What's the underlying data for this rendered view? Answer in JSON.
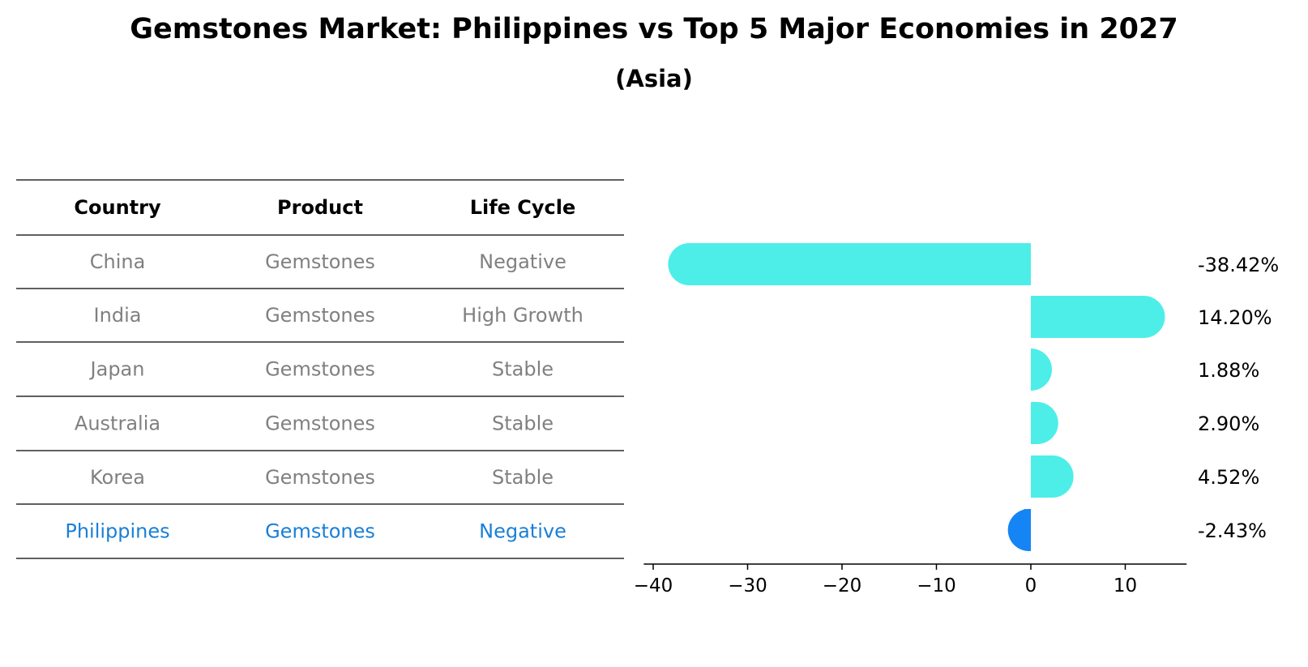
{
  "title": "Gemstones Market: Philippines vs Top 5 Major Economies in 2027",
  "subtitle": "(Asia)",
  "table": {
    "headers": [
      "Country",
      "Product",
      "Life Cycle"
    ],
    "rows": [
      {
        "country": "China",
        "product": "Gemstones",
        "life_cycle": "Negative",
        "highlight": false
      },
      {
        "country": "India",
        "product": "Gemstones",
        "life_cycle": "High Growth",
        "highlight": false
      },
      {
        "country": "Japan",
        "product": "Gemstones",
        "life_cycle": "Stable",
        "highlight": false
      },
      {
        "country": "Australia",
        "product": "Gemstones",
        "life_cycle": "Stable",
        "highlight": false
      },
      {
        "country": "Korea",
        "product": "Gemstones",
        "life_cycle": "Stable",
        "highlight": false
      },
      {
        "country": "Philippines",
        "product": "Gemstones",
        "life_cycle": "Negative",
        "highlight": true
      }
    ]
  },
  "colors": {
    "bar": "#4deee8",
    "highlight_bar": "#1585f5",
    "highlight_text": "#1a7fd6",
    "muted_text": "#808080"
  },
  "chart_data": {
    "type": "bar",
    "orientation": "horizontal",
    "categories": [
      "China",
      "India",
      "Japan",
      "Australia",
      "Korea",
      "Philippines"
    ],
    "values": [
      -38.42,
      14.2,
      1.88,
      2.9,
      4.52,
      -2.43
    ],
    "value_labels": [
      "-38.42%",
      "14.20%",
      "1.88%",
      "2.90%",
      "4.52%",
      "-2.43%"
    ],
    "xlim": [
      -41,
      16.5
    ],
    "xticks": [
      -40,
      -30,
      -20,
      -10,
      0,
      10
    ],
    "xtick_labels": [
      "−40",
      "−30",
      "−20",
      "−10",
      "0",
      "10"
    ],
    "title": "Gemstones Market: Philippines vs Top 5 Major Economies in 2027",
    "xlabel": "",
    "ylabel": ""
  }
}
